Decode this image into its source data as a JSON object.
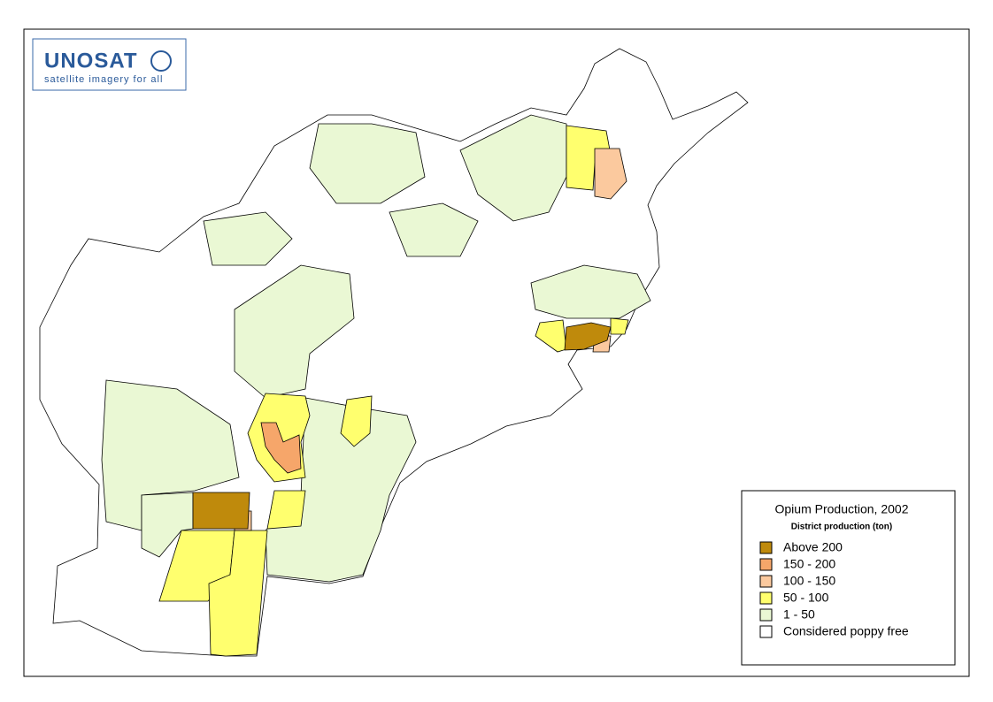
{
  "logo": {
    "name": "UNOSAT",
    "tagline": "satellite imagery for all"
  },
  "legend": {
    "title": "Opium Production, 2002",
    "subtitle": "District production (ton)",
    "items": [
      {
        "label": "Above 200",
        "color": "#bf8a0c"
      },
      {
        "label": "150 - 200",
        "color": "#f6a66a"
      },
      {
        "label": "100 - 150",
        "color": "#fbc99e"
      },
      {
        "label": "50 - 100",
        "color": "#ffff6e"
      },
      {
        "label": "1 - 50",
        "color": "#eaf8d4"
      },
      {
        "label": "Considered poppy free",
        "color": "#ffffff"
      }
    ]
  }
}
